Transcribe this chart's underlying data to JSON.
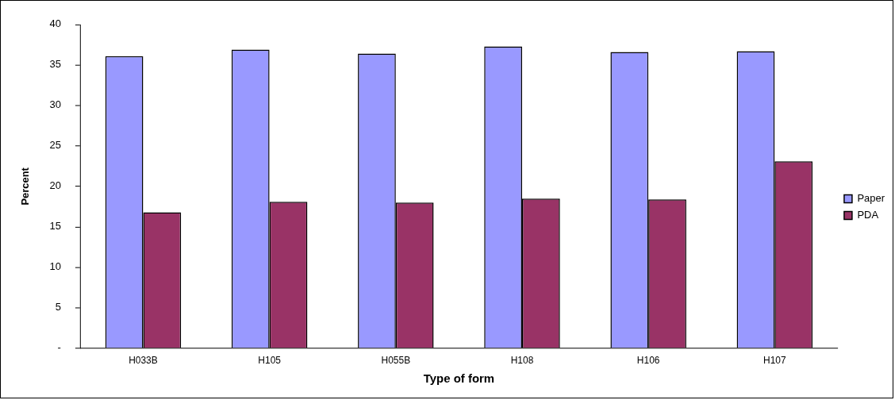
{
  "chart_data": {
    "type": "bar",
    "xlabel": "Type of form",
    "ylabel": "Percent",
    "categories": [
      "H033B",
      "H105",
      "H055B",
      "H108",
      "H106",
      "H107"
    ],
    "series": [
      {
        "name": "Paper",
        "color": "#9999ff",
        "values": [
          36.1,
          36.9,
          36.4,
          37.3,
          36.6,
          36.7
        ]
      },
      {
        "name": "PDA",
        "color": "#993366",
        "values": [
          16.8,
          18.1,
          18.0,
          18.5,
          18.4,
          23.1
        ]
      }
    ],
    "ylim": [
      0,
      40
    ],
    "yticks": [
      {
        "value": 0,
        "label": "-"
      },
      5,
      10,
      15,
      20,
      25,
      30,
      35,
      40
    ],
    "grid": false,
    "legend": "right"
  }
}
